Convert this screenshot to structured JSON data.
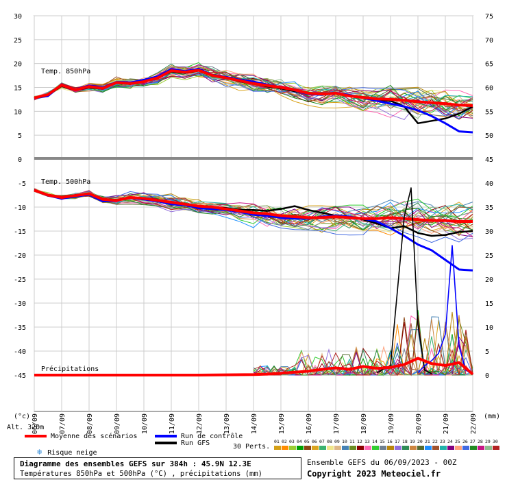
{
  "chart_data": {
    "type": "line",
    "dates": [
      "06/09",
      "07/09",
      "08/09",
      "09/09",
      "10/09",
      "11/09",
      "12/09",
      "13/09",
      "14/09",
      "15/09",
      "16/09",
      "17/09",
      "18/09",
      "19/09",
      "20/09",
      "21/09",
      "22/09"
    ],
    "left_axis_label": "(°c)",
    "right_axis_label": "(mm)",
    "panels": [
      {
        "name": "Temp. 850hPa",
        "ylim": [
          0,
          30
        ],
        "left_ticks": [
          "30",
          "25",
          "20",
          "15",
          "10",
          "5",
          "0"
        ],
        "right_ticks": [
          "75",
          "70",
          "65",
          "60",
          "55",
          "50",
          "45"
        ],
        "series": [
          {
            "name": "Moyenne des scénarios",
            "color": "#ff0000",
            "x_days": [
              0,
              0.5,
              1,
              1.5,
              2,
              2.5,
              3,
              3.5,
              4,
              4.5,
              5,
              5.5,
              6,
              6.5,
              7,
              7.5,
              8,
              8.5,
              9,
              9.5,
              10,
              10.5,
              11,
              11.5,
              12,
              12.5,
              13,
              13.5,
              14,
              14.5,
              15,
              15.5,
              16
            ],
            "values": [
              12.8,
              13.5,
              15.5,
              14.5,
              15.2,
              14.8,
              16.0,
              15.8,
              16.2,
              17.0,
              18.5,
              18.2,
              18.6,
              17.5,
              17.0,
              16.4,
              15.8,
              15.4,
              15.0,
              14.5,
              13.8,
              13.6,
              13.8,
              13.2,
              12.9,
              12.6,
              12.5,
              12.3,
              12.0,
              11.8,
              11.6,
              11.3,
              11.2
            ]
          },
          {
            "name": "Run de contrôle",
            "color": "#0000ff",
            "x_days": [
              0,
              0.5,
              1,
              1.5,
              2,
              2.5,
              3,
              3.5,
              4,
              4.5,
              5,
              5.5,
              6,
              6.5,
              7,
              7.5,
              8,
              8.5,
              9,
              9.5,
              10,
              10.5,
              11,
              11.5,
              12,
              12.5,
              13,
              13.5,
              14,
              14.5,
              15,
              15.5,
              16
            ],
            "values": [
              12.8,
              13.2,
              15.6,
              14.6,
              15.4,
              15.0,
              16.1,
              16.0,
              16.6,
              17.3,
              18.8,
              18.4,
              18.9,
              17.6,
              17.2,
              16.6,
              16.2,
              15.6,
              15.0,
              14.4,
              13.6,
              13.5,
              13.9,
              13.4,
              12.8,
              12.2,
              11.6,
              11.0,
              10.2,
              9.0,
              7.5,
              5.8,
              5.6
            ]
          },
          {
            "name": "Run GFS",
            "color": "#000000",
            "x_days": [
              0,
              0.5,
              1,
              1.5,
              2,
              2.5,
              3,
              3.5,
              4,
              4.5,
              5,
              5.5,
              6,
              6.5,
              7,
              7.5,
              8,
              8.5,
              9,
              9.5,
              10,
              10.5,
              11,
              11.5,
              12,
              12.5,
              13,
              13.5,
              14,
              14.5,
              15,
              15.5,
              16
            ],
            "values": [
              12.7,
              13.4,
              15.3,
              14.4,
              15.0,
              14.7,
              16.0,
              15.7,
              16.3,
              17.0,
              18.3,
              18.0,
              18.5,
              17.4,
              17.0,
              16.2,
              15.8,
              15.2,
              14.8,
              14.2,
              13.8,
              13.6,
              13.9,
              13.3,
              13.0,
              12.4,
              12.2,
              11.0,
              7.5,
              8.0,
              8.5,
              9.5,
              11.0
            ]
          }
        ]
      },
      {
        "name": "Temp. 500hPa",
        "ylim": [
          -52,
          -4
        ],
        "left_ticks": [
          "-5",
          "-10",
          "-15",
          "-20",
          "-25",
          "-30",
          "-35",
          "-40",
          "-45"
        ],
        "right_ticks": [
          "40",
          "35",
          "30",
          "25",
          "20",
          "15",
          "10",
          "5",
          "0"
        ],
        "series": [
          {
            "name": "Moyenne des scénarios",
            "color": "#ff0000",
            "x_days": [
              0,
              0.5,
              1,
              1.5,
              2,
              2.5,
              3,
              3.5,
              4,
              4.5,
              5,
              5.5,
              6,
              6.5,
              7,
              7.5,
              8,
              8.5,
              9,
              9.5,
              10,
              10.5,
              11,
              11.5,
              12,
              12.5,
              13,
              13.5,
              14,
              14.5,
              15,
              15.5,
              16
            ],
            "values": [
              -6.5,
              -7.5,
              -8.0,
              -7.6,
              -7.2,
              -8.4,
              -8.6,
              -8.0,
              -8.2,
              -8.6,
              -9.0,
              -9.4,
              -9.8,
              -10.0,
              -10.4,
              -10.8,
              -11.2,
              -11.4,
              -11.8,
              -12.0,
              -12.2,
              -12.2,
              -12.0,
              -12.2,
              -12.4,
              -12.4,
              -12.2,
              -12.4,
              -12.6,
              -12.8,
              -12.8,
              -13.0,
              -13.0
            ]
          },
          {
            "name": "Run de contrôle",
            "color": "#0000ff",
            "x_days": [
              0,
              0.5,
              1,
              1.5,
              2,
              2.5,
              3,
              3.5,
              4,
              4.5,
              5,
              5.5,
              6,
              6.5,
              7,
              7.5,
              8,
              8.5,
              9,
              9.5,
              10,
              10.5,
              11,
              11.5,
              12,
              12.5,
              13,
              13.5,
              14,
              14.5,
              15,
              15.5,
              16
            ],
            "values": [
              -6.5,
              -7.6,
              -8.2,
              -7.8,
              -7.4,
              -8.8,
              -8.6,
              -8.1,
              -8.4,
              -8.8,
              -9.4,
              -9.6,
              -10.2,
              -10.4,
              -10.6,
              -11.0,
              -11.6,
              -11.8,
              -12.2,
              -12.4,
              -12.4,
              -12.0,
              -11.8,
              -12.0,
              -12.4,
              -13.0,
              -14.4,
              -16.0,
              -17.8,
              -19.0,
              -21.0,
              -23.0,
              -23.2
            ]
          },
          {
            "name": "Run GFS",
            "color": "#000000",
            "x_days": [
              0,
              0.5,
              1,
              1.5,
              2,
              2.5,
              3,
              3.5,
              4,
              4.5,
              5,
              5.5,
              6,
              6.5,
              7,
              7.5,
              8,
              8.5,
              9,
              9.5,
              10,
              10.5,
              11,
              11.5,
              12,
              12.5,
              13,
              13.5,
              14,
              14.5,
              15,
              15.5,
              16
            ],
            "values": [
              -6.4,
              -7.4,
              -7.9,
              -7.5,
              -7.2,
              -8.3,
              -8.5,
              -8.0,
              -8.1,
              -8.5,
              -9.0,
              -9.3,
              -9.8,
              -10.0,
              -10.2,
              -10.6,
              -10.6,
              -10.8,
              -10.4,
              -9.8,
              -10.6,
              -11.2,
              -11.8,
              -12.0,
              -12.6,
              -13.4,
              -14.4,
              -14.0,
              -15.4,
              -16.0,
              -15.8,
              -15.2,
              -15.0
            ]
          }
        ]
      },
      {
        "name": "Précipitations",
        "unit": "mm",
        "ylim": [
          0,
          45
        ],
        "series": [
          {
            "name": "Moyenne des scénarios",
            "color": "#ff0000",
            "x_days": [
              0,
              2,
              4,
              6,
              8,
              8.5,
              9,
              9.5,
              10,
              10.5,
              11,
              11.5,
              12,
              12.5,
              13,
              13.5,
              14,
              14.5,
              15,
              15.5,
              16
            ],
            "values": [
              0,
              0,
              0,
              0,
              0.1,
              0.2,
              0.4,
              0.6,
              0.8,
              1.2,
              1.5,
              1.2,
              1.8,
              1.4,
              1.6,
              2.2,
              3.5,
              2.4,
              2.0,
              2.6,
              0.2
            ]
          },
          {
            "name": "Run GFS",
            "color": "#000000",
            "x_days": [
              12.5,
              13,
              13.25,
              13.5,
              13.75,
              14,
              14.25,
              14.5
            ],
            "values": [
              0.5,
              2.0,
              17.5,
              33.0,
              39.0,
              10.5,
              1.0,
              0.3
            ]
          },
          {
            "name": "Run de contrôle",
            "color": "#0000ff",
            "x_days": [
              14,
              14.25,
              14.5,
              14.75,
              15,
              15.25,
              15.5,
              15.75,
              16
            ],
            "values": [
              0.5,
              2.0,
              3.0,
              4.5,
              8.5,
              27.0,
              6.0,
              1.0,
              0.2
            ]
          }
        ]
      }
    ],
    "grid": true
  },
  "chart_text": {
    "panel1_label": "Temp. 850hPa",
    "panel2_label": "Temp. 500hPa",
    "precip_label": "Précipitations",
    "unit_left": "(°c)",
    "unit_right": "(mm)",
    "altitude": "Alt. 320m"
  },
  "legend": {
    "mean": {
      "label": "Moyenne des scénarios",
      "color": "#ff0000"
    },
    "control": {
      "label": "Run de contrôle",
      "color": "#0000ff"
    },
    "gfs": {
      "label": "Run GFS",
      "color": "#000000"
    },
    "snow": "Risque neige",
    "perts_label": "30 Perts.",
    "pert_numbers": [
      "01",
      "02",
      "03",
      "04",
      "05",
      "06",
      "07",
      "08",
      "09",
      "10",
      "11",
      "12",
      "13",
      "14",
      "15",
      "16",
      "17",
      "18",
      "19",
      "20",
      "21",
      "22",
      "23",
      "24",
      "25",
      "26",
      "27",
      "28",
      "29",
      "30"
    ],
    "pert_colors": [
      "#d4a017",
      "#ff8c00",
      "#9acd32",
      "#00a000",
      "#8b4513",
      "#daa520",
      "#3cb371",
      "#f0e68c",
      "#deb887",
      "#4682b4",
      "#6b8e23",
      "#8b0000",
      "#ff69b4",
      "#32cd32",
      "#708090",
      "#b8860b",
      "#9370db",
      "#2e8b57",
      "#cd853f",
      "#556b2f",
      "#1e90ff",
      "#a0522d",
      "#20b2aa",
      "#800080",
      "#ffa07a",
      "#4169e1",
      "#228b22",
      "#c71585",
      "#8fbc8f",
      "#b22222"
    ]
  },
  "footer": {
    "title": "Diagramme des ensembles GEFS sur 384h : 45.9N 12.3E",
    "subtitle": "Températures 850hPa et 500hPa (°C) , précipitations (mm)",
    "run_info": "Ensemble GEFS du 06/09/2023 - 00Z",
    "copyright": "Copyright 2023 Meteociel.fr"
  }
}
